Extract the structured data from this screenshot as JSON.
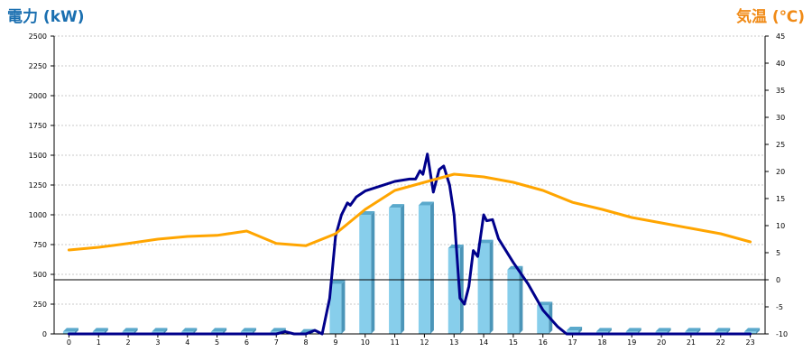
{
  "chart_data": {
    "type": "bar+line",
    "left_axis": {
      "title": "電力 (kW)",
      "color": "#1a6fb0",
      "ylim": [
        0,
        2500
      ],
      "ticks": [
        0,
        250,
        500,
        750,
        1000,
        1250,
        1500,
        1750,
        2000,
        2250,
        2500
      ]
    },
    "right_axis": {
      "title": "気温 (℃)",
      "color": "#f08a16",
      "ylim": [
        -10,
        45
      ],
      "ticks": [
        -10,
        -5,
        0,
        5,
        10,
        15,
        20,
        25,
        30,
        35,
        40,
        45
      ]
    },
    "x_axis": {
      "categories": [
        0,
        1,
        2,
        3,
        4,
        5,
        6,
        7,
        8,
        9,
        10,
        11,
        12,
        13,
        14,
        15,
        16,
        17,
        18,
        19,
        20,
        21,
        22,
        23
      ]
    },
    "grid": true,
    "series": [
      {
        "type": "bar",
        "axis": "left",
        "color": "#87ceeb",
        "values": [
          20,
          20,
          20,
          20,
          20,
          20,
          20,
          20,
          10,
          420,
          1000,
          1060,
          1080,
          720,
          760,
          540,
          240,
          30,
          20,
          20,
          20,
          20,
          20,
          20
        ]
      },
      {
        "type": "line",
        "axis": "left",
        "color": "#00008b",
        "points": [
          [
            0,
            0
          ],
          [
            1,
            0
          ],
          [
            2,
            0
          ],
          [
            3,
            0
          ],
          [
            4,
            0
          ],
          [
            5,
            0
          ],
          [
            6,
            0
          ],
          [
            7,
            0
          ],
          [
            7.3,
            20
          ],
          [
            7.6,
            0
          ],
          [
            8.0,
            0
          ],
          [
            8.3,
            30
          ],
          [
            8.55,
            0
          ],
          [
            8.8,
            300
          ],
          [
            9.0,
            820
          ],
          [
            9.2,
            1000
          ],
          [
            9.4,
            1100
          ],
          [
            9.5,
            1080
          ],
          [
            9.7,
            1150
          ],
          [
            10.0,
            1200
          ],
          [
            10.5,
            1240
          ],
          [
            11.0,
            1280
          ],
          [
            11.5,
            1300
          ],
          [
            11.7,
            1300
          ],
          [
            11.85,
            1370
          ],
          [
            11.95,
            1340
          ],
          [
            12.1,
            1510
          ],
          [
            12.3,
            1190
          ],
          [
            12.5,
            1380
          ],
          [
            12.65,
            1410
          ],
          [
            12.85,
            1250
          ],
          [
            13.0,
            1000
          ],
          [
            13.2,
            300
          ],
          [
            13.35,
            250
          ],
          [
            13.5,
            400
          ],
          [
            13.65,
            700
          ],
          [
            13.8,
            650
          ],
          [
            14.0,
            1000
          ],
          [
            14.1,
            950
          ],
          [
            14.3,
            960
          ],
          [
            14.5,
            800
          ],
          [
            15.0,
            600
          ],
          [
            15.5,
            420
          ],
          [
            16.0,
            200
          ],
          [
            16.5,
            60
          ],
          [
            16.8,
            0
          ],
          [
            17,
            0
          ],
          [
            18,
            0
          ],
          [
            19,
            0
          ],
          [
            20,
            0
          ],
          [
            21,
            0
          ],
          [
            22,
            0
          ],
          [
            23,
            0
          ]
        ]
      },
      {
        "type": "line",
        "axis": "right",
        "color": "#ffa500",
        "points": [
          [
            0,
            5.5
          ],
          [
            1,
            6.0
          ],
          [
            2,
            6.7
          ],
          [
            3,
            7.5
          ],
          [
            4,
            8.0
          ],
          [
            5,
            8.2
          ],
          [
            6,
            9.0
          ],
          [
            7,
            6.7
          ],
          [
            8,
            6.3
          ],
          [
            9,
            8.5
          ],
          [
            10,
            13.0
          ],
          [
            11,
            16.5
          ],
          [
            12,
            18.0
          ],
          [
            13,
            19.5
          ],
          [
            14,
            19.0
          ],
          [
            15,
            18.0
          ],
          [
            16,
            16.5
          ],
          [
            17,
            14.3
          ],
          [
            18,
            13.0
          ],
          [
            19,
            11.5
          ],
          [
            20,
            10.5
          ],
          [
            21,
            9.5
          ],
          [
            22,
            8.5
          ],
          [
            23,
            7.0
          ]
        ]
      }
    ]
  }
}
